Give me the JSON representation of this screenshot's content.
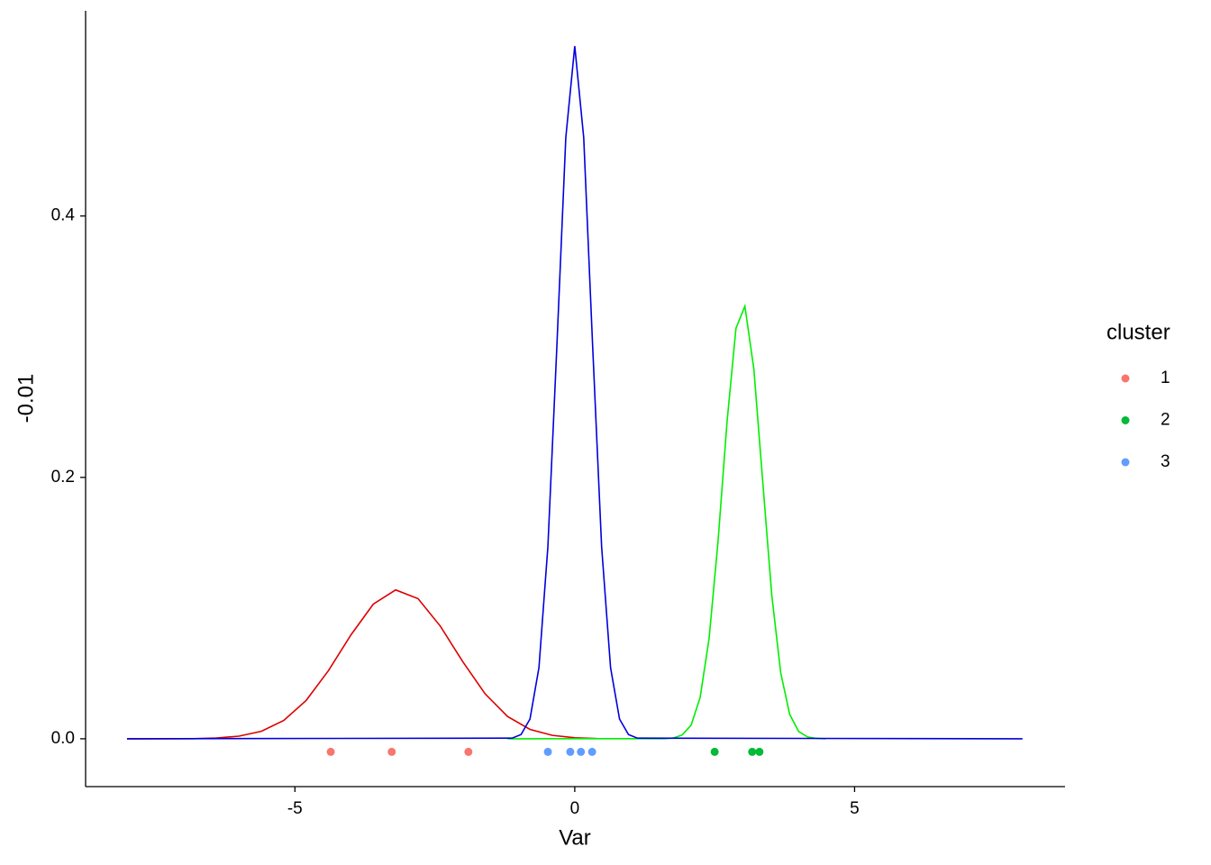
{
  "chart_data": {
    "type": "line",
    "x_label": "Var",
    "y_label": "-0.01",
    "xlim": [
      -8.74,
      8.76
    ],
    "ylim": [
      -0.0366,
      0.557
    ],
    "xticks": [
      -5,
      0,
      5
    ],
    "yticks": [
      {
        "value": 0,
        "label": "0.0"
      },
      0.2,
      0.4
    ],
    "grid": false,
    "lines": [
      {
        "color": "#dd0000",
        "x": [
          -8,
          -6.8,
          -6.4,
          -6.0,
          -5.6,
          -5.2,
          -4.8,
          -4.4,
          -4.0,
          -3.6,
          -3.2,
          -2.8,
          -2.4,
          -2.0,
          -1.6,
          -1.2,
          -0.8,
          -0.4,
          0,
          0.4
        ],
        "values": [
          0,
          0.0001,
          0.0006,
          0.002,
          0.0057,
          0.014,
          0.0293,
          0.0522,
          0.0794,
          0.103,
          0.1139,
          0.1072,
          0.0861,
          0.0589,
          0.0343,
          0.017,
          0.0072,
          0.0026,
          0.0008,
          0.0002
        ]
      },
      {
        "color": "#00ee00",
        "x": [
          -1.2,
          1.6,
          1.76,
          1.92,
          2.08,
          2.24,
          2.4,
          2.56,
          2.72,
          2.88,
          3.04,
          3.2,
          3.36,
          3.52,
          3.68,
          3.84,
          4.0,
          4.16,
          4.32,
          4.48
        ],
        "values": [
          0,
          0.0001,
          0.0006,
          0.0029,
          0.0105,
          0.0315,
          0.0766,
          0.151,
          0.242,
          0.314,
          0.331,
          0.283,
          0.196,
          0.11,
          0.0505,
          0.0187,
          0.0056,
          0.0014,
          0.0003,
          0
        ]
      },
      {
        "color": "#0000dd",
        "x": [
          -8,
          -1.12,
          -0.96,
          -0.8,
          -0.64,
          -0.48,
          -0.32,
          -0.16,
          0,
          0.16,
          0.32,
          0.48,
          0.64,
          0.8,
          0.96,
          1.12,
          8
        ],
        "values": [
          0,
          0.0005,
          0.0032,
          0.0151,
          0.0544,
          0.147,
          0.3,
          0.46,
          0.53,
          0.46,
          0.3,
          0.147,
          0.0544,
          0.0151,
          0.0032,
          0.0005,
          0
        ]
      }
    ],
    "legend_title": "cluster",
    "legend_position": "right",
    "series": [
      {
        "name": "1",
        "color": "#F8766D",
        "x": [
          -4.36,
          -3.27,
          -1.9
        ],
        "values": [
          -0.01,
          -0.01,
          -0.01
        ]
      },
      {
        "name": "2",
        "color": "#00BA38",
        "x": [
          2.5,
          3.17,
          3.3
        ],
        "values": [
          -0.01,
          -0.01,
          -0.01
        ]
      },
      {
        "name": "3",
        "color": "#619CFF",
        "x": [
          -0.48,
          -0.08,
          0.11,
          0.31
        ],
        "values": [
          -0.01,
          -0.01,
          -0.01,
          -0.01
        ]
      }
    ]
  }
}
